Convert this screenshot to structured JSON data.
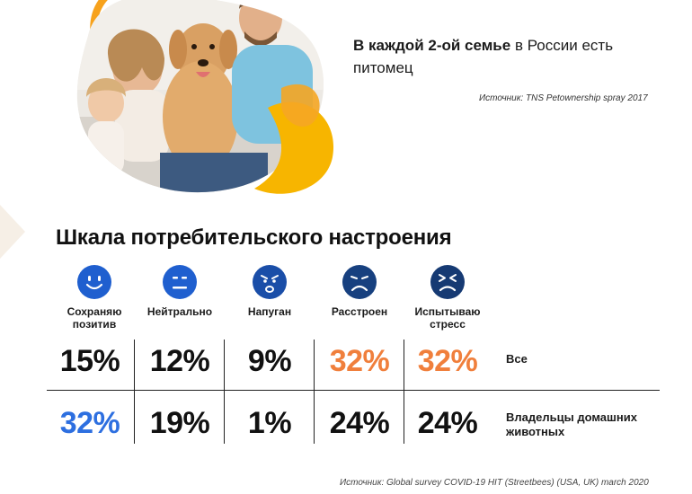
{
  "headline": {
    "bold": "В каждой 2-ой семье",
    "rest": " в России есть питомец"
  },
  "source_top": "Источник: TNS Petownership spray 2017",
  "section_title": "Шкала потребительского настроения",
  "moods": [
    {
      "label": "Сохраняю позитив",
      "icon": "happy-face-icon"
    },
    {
      "label": "Нейтрально",
      "icon": "neutral-face-icon"
    },
    {
      "label": "Напуган",
      "icon": "scared-face-icon"
    },
    {
      "label": "Расстроен",
      "icon": "sad-face-icon"
    },
    {
      "label": "Испытываю стресс",
      "icon": "stressed-face-icon"
    }
  ],
  "rows": [
    {
      "label": "Все",
      "values": [
        "15%",
        "12%",
        "9%",
        "32%",
        "32%"
      ]
    },
    {
      "label": "Владельцы домашних животных",
      "values": [
        "32%",
        "19%",
        "1%",
        "24%",
        "24%"
      ]
    }
  ],
  "source_bottom": "Источник: Global survey COVID-19 HIT (Streetbees) (USA, UK) march 2020",
  "colors": {
    "icon_blue": "#1f5fcf",
    "icon_dark": "#17407f",
    "orange": "#f07f3c",
    "blue_value": "#2d6fe0",
    "yellow": "#f7b500"
  }
}
